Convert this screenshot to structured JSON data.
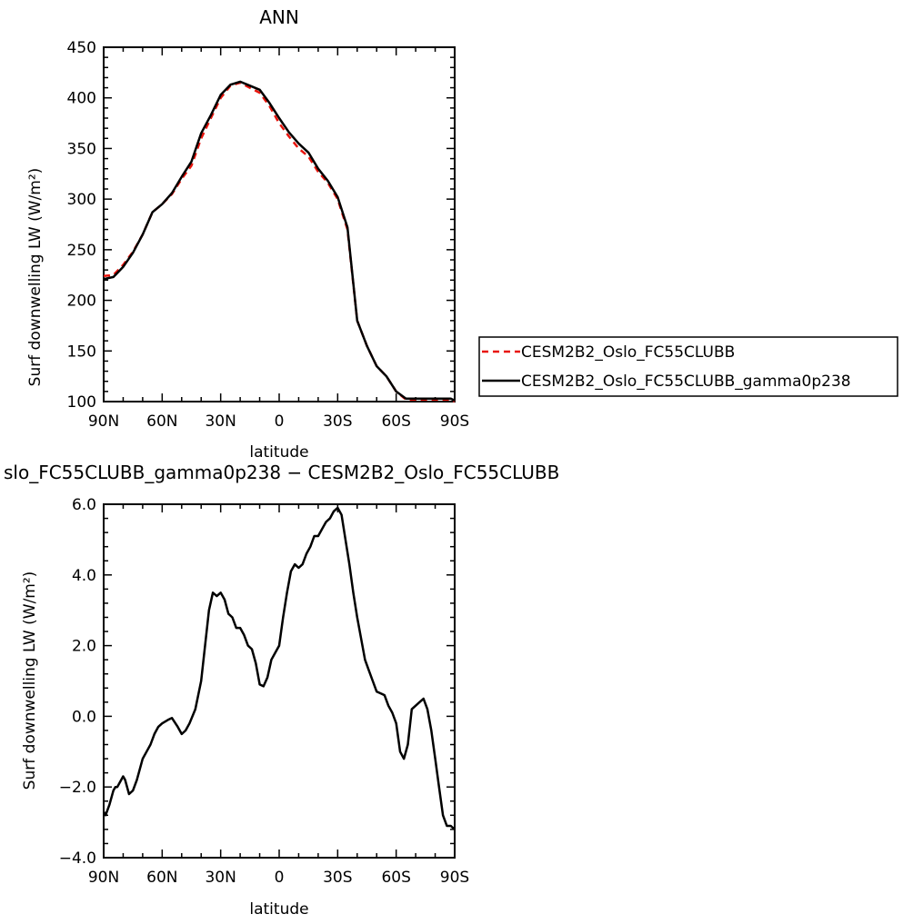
{
  "chart_data": [
    {
      "type": "line",
      "title": "ANN",
      "xlabel": "latitude",
      "ylabel": "Surf downwelling LW (W/m²)",
      "xlim": [
        90,
        -90
      ],
      "ylim": [
        100,
        450
      ],
      "xticks": [
        90,
        60,
        30,
        0,
        -30,
        -60,
        -90
      ],
      "xtick_labels": [
        "90N",
        "60N",
        "30N",
        "0",
        "30S",
        "60S",
        "90S"
      ],
      "yticks": [
        100,
        150,
        200,
        250,
        300,
        350,
        400,
        450
      ],
      "ytick_labels": [
        "100",
        "150",
        "200",
        "250",
        "300",
        "350",
        "400",
        "450"
      ],
      "grid": false,
      "legend": "right-outside",
      "colors": {
        "series_dashed": "#e8140c",
        "series_solid": "#000000"
      },
      "series": [
        {
          "name": "CESM2B2_Oslo_FC55CLUBB",
          "style": "dashed",
          "x": [
            90,
            85,
            80,
            75,
            70,
            65,
            60,
            55,
            50,
            45,
            40,
            35,
            30,
            25,
            20,
            15,
            10,
            5,
            0,
            -5,
            -10,
            -15,
            -20,
            -25,
            -30,
            -35,
            -40,
            -45,
            -50,
            -55,
            -60,
            -65,
            -70,
            -75,
            -80,
            -85,
            -88,
            -90
          ],
          "y": [
            224,
            225,
            235,
            248,
            265,
            287,
            295,
            305,
            320,
            333,
            360,
            380,
            400,
            412,
            415,
            410,
            405,
            392,
            375,
            362,
            350,
            342,
            327,
            316,
            300,
            270,
            180,
            155,
            135,
            125,
            110,
            102,
            102,
            102,
            102,
            102,
            102,
            100
          ]
        },
        {
          "name": "CESM2B2_Oslo_FC55CLUBB_gamma0p238",
          "style": "solid",
          "x": [
            90,
            85,
            80,
            75,
            70,
            65,
            60,
            55,
            50,
            45,
            40,
            35,
            30,
            25,
            20,
            15,
            10,
            5,
            0,
            -5,
            -10,
            -15,
            -20,
            -25,
            -30,
            -35,
            -40,
            -45,
            -50,
            -55,
            -60,
            -65,
            -70,
            -75,
            -80,
            -85,
            -88,
            -90
          ],
          "y": [
            221,
            223,
            233,
            247,
            265,
            287,
            295,
            306,
            322,
            337,
            365,
            383,
            403,
            413,
            416,
            412,
            408,
            395,
            380,
            366,
            355,
            346,
            330,
            318,
            302,
            272,
            180,
            155,
            135,
            125,
            110,
            103,
            103,
            103,
            103,
            103,
            103,
            101
          ]
        }
      ]
    },
    {
      "type": "line",
      "title": "slo_FC55CLUBB_gamma0p238 − CESM2B2_Oslo_FC55CLUBB",
      "xlabel": "latitude",
      "ylabel": "Surf downwelling LW (W/m²)",
      "xlim": [
        90,
        -90
      ],
      "ylim": [
        -4,
        6
      ],
      "xticks": [
        90,
        60,
        30,
        0,
        -30,
        -60,
        -90
      ],
      "xtick_labels": [
        "90N",
        "60N",
        "30N",
        "0",
        "30S",
        "60S",
        "90S"
      ],
      "yticks": [
        -4,
        -2,
        0,
        2,
        4,
        6
      ],
      "ytick_labels": [
        "−4.0",
        "−2.0",
        "0.0",
        "2.0",
        "4.0",
        "6.0"
      ],
      "grid": false,
      "colors": {
        "line": "#000000"
      },
      "series": [
        {
          "x": [
            90,
            89,
            87,
            85,
            84,
            83,
            81,
            80,
            79,
            77,
            75,
            73,
            70,
            68,
            66,
            64,
            62,
            60,
            57,
            55,
            52,
            50,
            48,
            46,
            43,
            40,
            38,
            36,
            34,
            32,
            30,
            28,
            26,
            24,
            22,
            20,
            18,
            16,
            14,
            12,
            10,
            8,
            6,
            4,
            2,
            0,
            -2,
            -4,
            -6,
            -8,
            -10,
            -12,
            -14,
            -16,
            -18,
            -20,
            -22,
            -24,
            -26,
            -28,
            -30,
            -32,
            -34,
            -36,
            -38,
            -40,
            -42,
            -44,
            -46,
            -48,
            -50,
            -52,
            -54,
            -56,
            -58,
            -60,
            -62,
            -64,
            -66,
            -68,
            -70,
            -72,
            -74,
            -76,
            -78,
            -80,
            -82,
            -84,
            -86,
            -88,
            -90
          ],
          "y": [
            -2.7,
            -2.8,
            -2.5,
            -2.1,
            -2.0,
            -2.0,
            -1.8,
            -1.7,
            -1.8,
            -2.2,
            -2.1,
            -1.8,
            -1.2,
            -1.0,
            -0.8,
            -0.5,
            -0.3,
            -0.2,
            -0.1,
            -0.05,
            -0.3,
            -0.5,
            -0.4,
            -0.2,
            0.2,
            1.0,
            2.0,
            3.0,
            3.5,
            3.4,
            3.5,
            3.3,
            2.9,
            2.8,
            2.5,
            2.5,
            2.3,
            2.0,
            1.9,
            1.5,
            0.9,
            0.85,
            1.1,
            1.6,
            1.8,
            2.0,
            2.8,
            3.5,
            4.1,
            4.3,
            4.2,
            4.3,
            4.6,
            4.8,
            5.1,
            5.1,
            5.3,
            5.5,
            5.6,
            5.8,
            5.9,
            5.7,
            5.0,
            4.3,
            3.5,
            2.8,
            2.2,
            1.6,
            1.3,
            1.0,
            0.7,
            0.65,
            0.6,
            0.3,
            0.1,
            -0.2,
            -1.0,
            -1.2,
            -0.8,
            0.2,
            0.3,
            0.4,
            0.5,
            0.2,
            -0.4,
            -1.2,
            -2.0,
            -2.8,
            -3.1,
            -3.1,
            -3.2
          ]
        }
      ]
    }
  ]
}
